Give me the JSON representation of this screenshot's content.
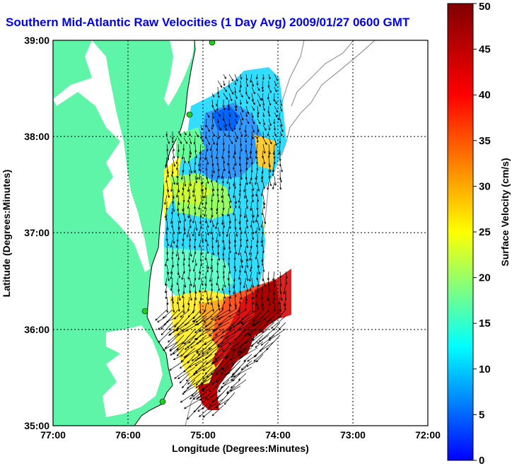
{
  "title": "Southern Mid-Atlantic Raw Velocities (1 Day Avg) 2009/01/27 0600 GMT",
  "axes": {
    "xlabel": "Longitude (Degrees:Minutes)",
    "ylabel": "Latitude (Degrees:Minutes)",
    "xticks": [
      "77:00",
      "76:00",
      "75:00",
      "74:00",
      "73:00",
      "72:00"
    ],
    "yticks": [
      "39:00",
      "38:00",
      "37:00",
      "36:00",
      "35:00"
    ]
  },
  "colorbar": {
    "label": "Surface Velocity (cm/s)",
    "ticks": [
      "50",
      "45",
      "40",
      "35",
      "30",
      "25",
      "20",
      "15",
      "10",
      "5",
      "0"
    ],
    "min": 0,
    "max": 50,
    "colors": [
      "#0000ff",
      "#00ffff",
      "#ffff00",
      "#ff0000",
      "#800000"
    ]
  },
  "colors": {
    "land": "#5ff5a8",
    "coast_line": "#000000",
    "bathymetry": "#999999",
    "station": "#22cc22",
    "vector": "#000000"
  }
}
